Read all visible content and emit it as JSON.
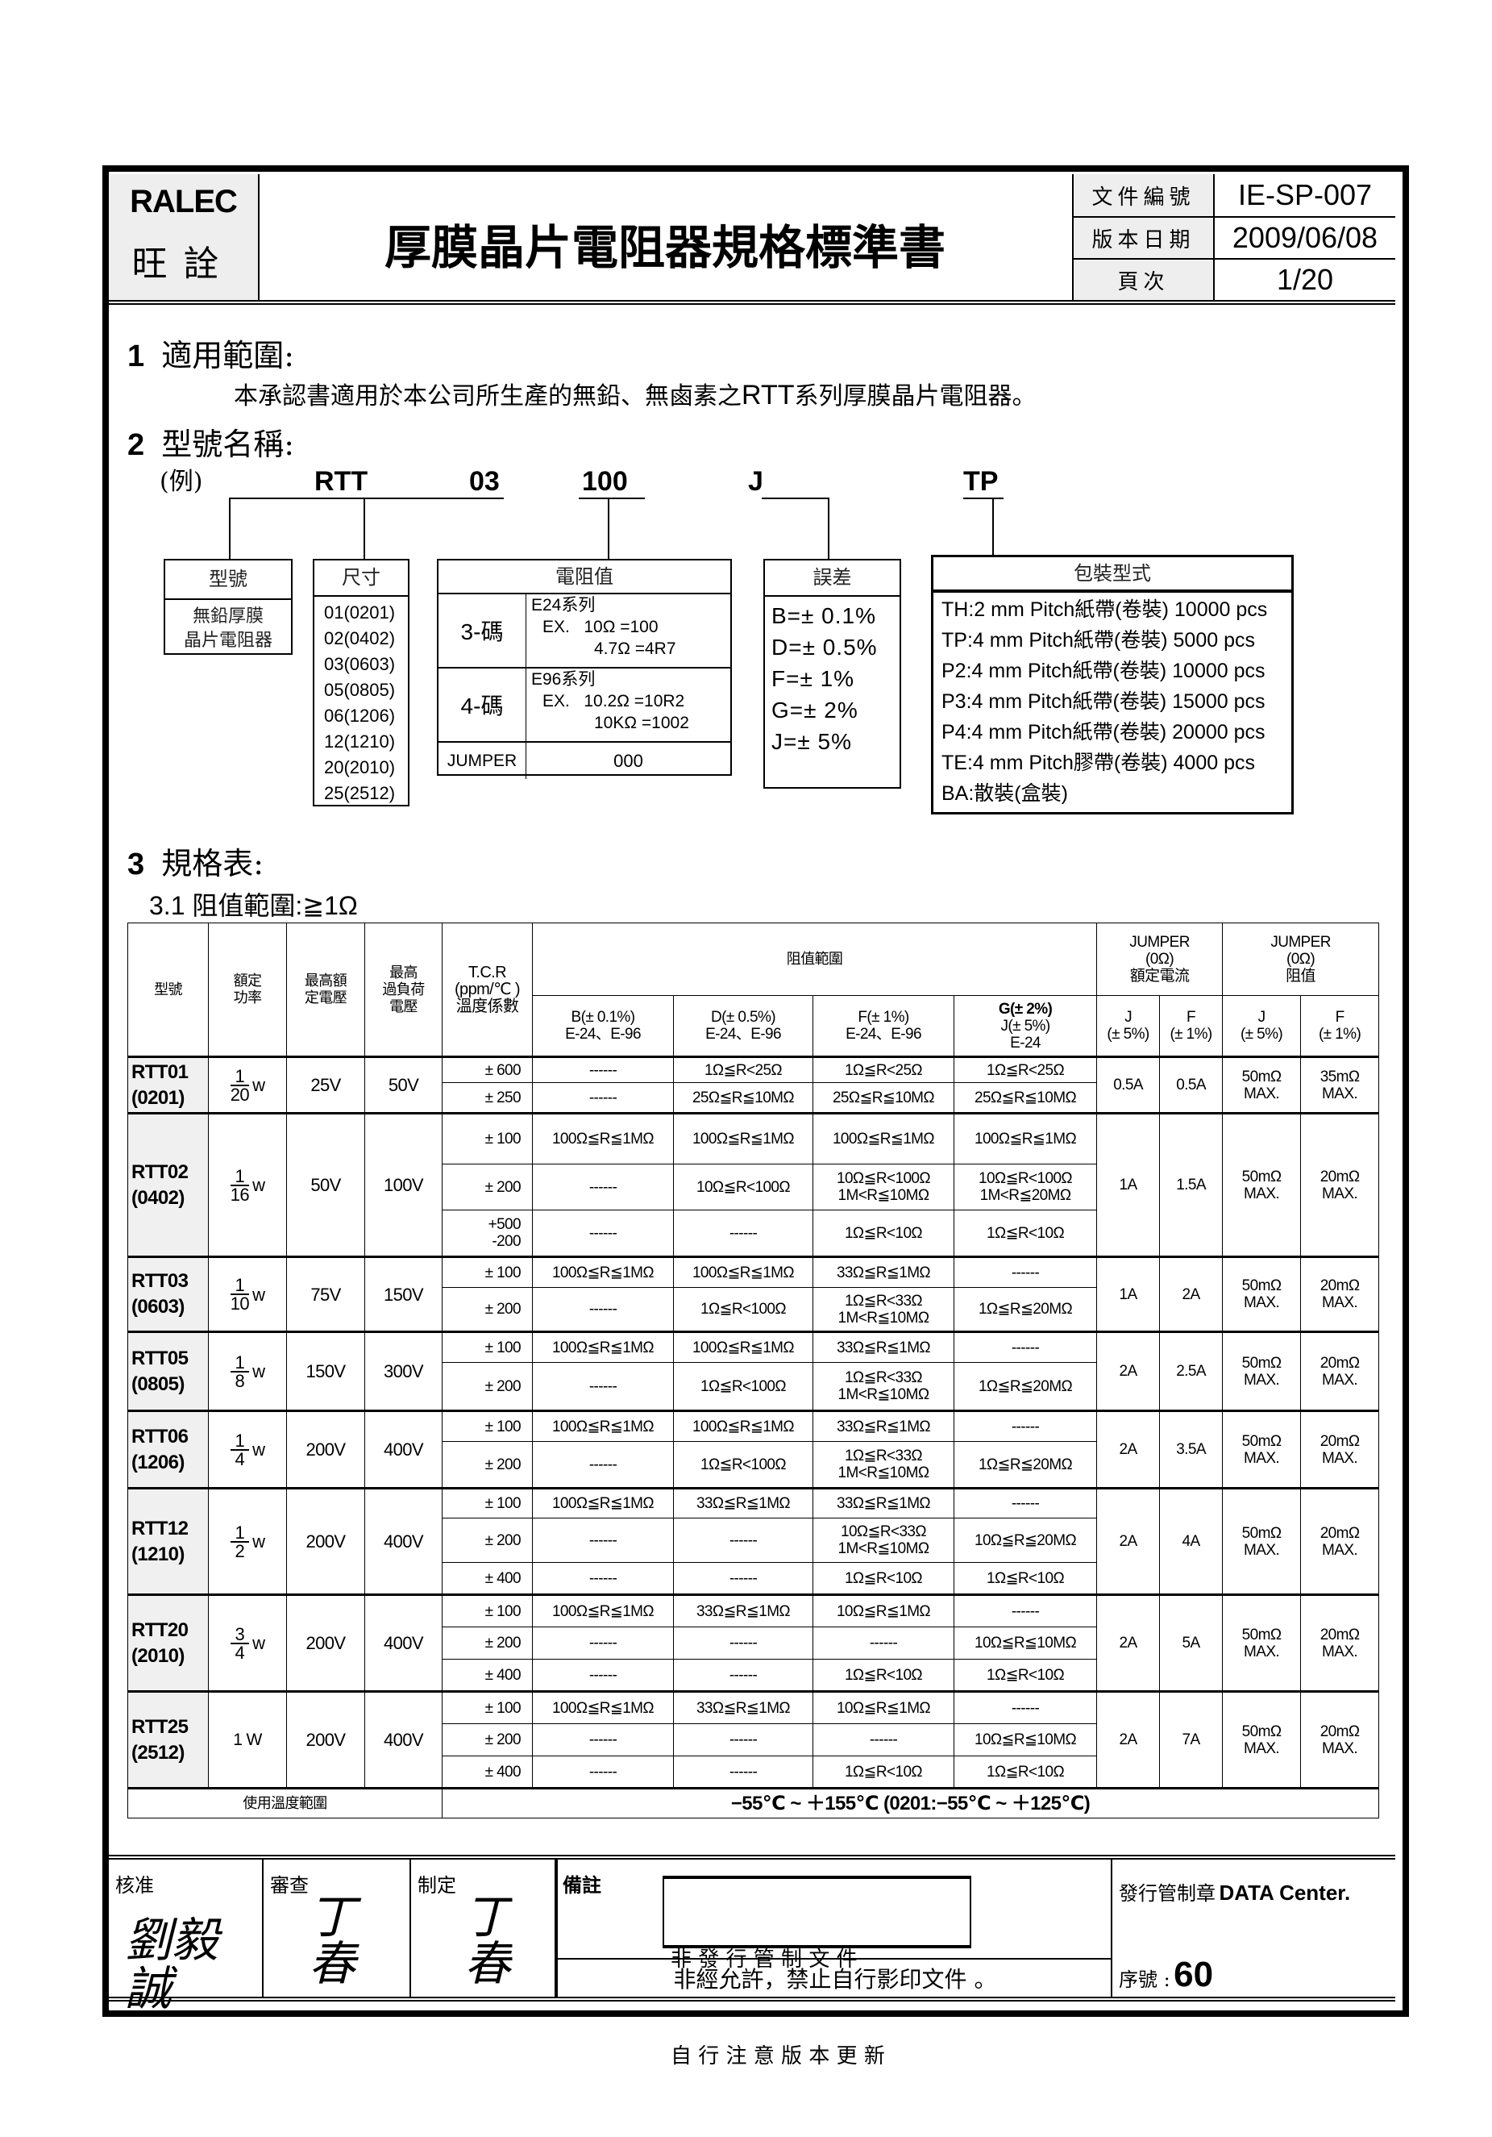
{
  "header": {
    "brand_en": "RALEC",
    "brand_zh": "旺詮",
    "title": "厚膜晶片電阻器規格標準書",
    "meta": [
      {
        "label": "文件編號",
        "value": "IE-SP-007"
      },
      {
        "label": "版本日期",
        "value": "2009/06/08"
      },
      {
        "label": "頁次",
        "value": "1/20"
      }
    ]
  },
  "section1": {
    "number": "1",
    "title": "適用範圍:",
    "text_a": "本承認書適用於本公司所生產的無鉛、無鹵素之",
    "text_rtt": "RTT",
    "text_b": "系列厚膜晶片電阻器。"
  },
  "section2": {
    "number": "2",
    "title": "型號名稱:",
    "example": "(例)",
    "codes": [
      "RTT",
      "03",
      "100",
      "J",
      "TP"
    ],
    "type_box": {
      "title": "型號",
      "lines": [
        "無鉛厚膜",
        "晶片電阻器"
      ]
    },
    "size_box": {
      "title": "尺寸",
      "items": [
        "01(0201)",
        "02(0402)",
        "03(0603)",
        "05(0805)",
        "06(1206)",
        "12(1210)",
        "20(2010)",
        "25(2512)"
      ]
    },
    "value_box": {
      "title": "電阻值",
      "three": {
        "label": "3-碼",
        "series": "E24系列",
        "ex1": "EX.   10Ω =100",
        "ex2": "4.7Ω =4R7"
      },
      "four": {
        "label": "4-碼",
        "series": "E96系列",
        "ex1": "EX.   10.2Ω =10R2",
        "ex2": "10KΩ =1002"
      },
      "jumper": {
        "label": "JUMPER",
        "value": "000"
      }
    },
    "tol_box": {
      "title": "誤差",
      "items": [
        "B=±  0.1%",
        "D=±  0.5%",
        "F=±  1%",
        "G=±  2%",
        "J=±  5%"
      ]
    },
    "pack_box": {
      "title": "包裝型式",
      "items": [
        "TH:2 mm Pitch紙帶(卷裝) 10000 pcs",
        "TP:4 mm Pitch紙帶(卷裝) 5000 pcs",
        "P2:4 mm Pitch紙帶(卷裝) 10000 pcs",
        "P3:4 mm Pitch紙帶(卷裝) 15000 pcs",
        "P4:4 mm Pitch紙帶(卷裝) 20000 pcs",
        "TE:4 mm Pitch膠帶(卷裝) 4000 pcs",
        "BA:散裝(盒裝)"
      ]
    }
  },
  "section3": {
    "number": "3",
    "title": "規格表:",
    "sub": "3.1 阻值範圍:≧1Ω"
  },
  "table": {
    "headers": {
      "model": "型號",
      "power": "額定\n功率",
      "voltage": "最高額\n定電壓",
      "overload": "最高\n過負荷\n電壓",
      "tcr": "T.C.R\n(ppm/℃ )\n溫度係數",
      "range": "阻值範圍",
      "b": "B(± 0.1%)\nE-24、E-96",
      "d": "D(± 0.5%)\nE-24、E-96",
      "f": "F(± 1%)\nE-24、E-96",
      "g_bold": "G(± 2%)",
      "g": "J(± 5%)\nE-24",
      "jc": "JUMPER\n(0Ω)\n額定電流",
      "jr": "JUMPER\n(0Ω)\n阻值",
      "jc_j": "J\n(± 5%)",
      "jc_f": "F\n(± 1%)",
      "jr_j": "J\n(± 5%)",
      "jr_f": "F\n(± 1%)"
    },
    "products": [
      {
        "model": "RTT01\n(0201)",
        "power": {
          "num": "1",
          "den": "20",
          "unit": "w"
        },
        "voltage": "25V",
        "overload": "50V",
        "rows": [
          [
            "± 600",
            "------",
            "1Ω≦R<25Ω",
            "1Ω≦R<25Ω",
            "1Ω≦R<25Ω"
          ],
          [
            "± 250",
            "------",
            "25Ω≦R≦10MΩ",
            "25Ω≦R≦10MΩ",
            "25Ω≦R≦10MΩ"
          ]
        ],
        "jc_j": "0.5A",
        "jc_f": "0.5A",
        "jr_j": "50mΩ\nMAX.",
        "jr_f": "35mΩ\nMAX."
      },
      {
        "model": "RTT02\n(0402)",
        "power": {
          "num": "1",
          "den": "16",
          "unit": "w"
        },
        "voltage": "50V",
        "overload": "100V",
        "rows": [
          [
            "± 100",
            "100Ω≦R≦1MΩ",
            "100Ω≦R≦1MΩ",
            "100Ω≦R≦1MΩ",
            "100Ω≦R≦1MΩ"
          ],
          [
            "± 200",
            "------",
            "10Ω≦R<100Ω",
            "10Ω≦R<100Ω\n1M<R≦10MΩ",
            "10Ω≦R<100Ω\n1M<R≦20MΩ"
          ],
          [
            "+500\n-200",
            "------",
            "------",
            "1Ω≦R<10Ω",
            "1Ω≦R<10Ω"
          ]
        ],
        "jc_j": "1A",
        "jc_f": "1.5A",
        "jr_j": "50mΩ\nMAX.",
        "jr_f": "20mΩ\nMAX."
      },
      {
        "model": "RTT03\n(0603)",
        "power": {
          "num": "1",
          "den": "10",
          "unit": "w"
        },
        "voltage": "75V",
        "overload": "150V",
        "rows": [
          [
            "± 100",
            "100Ω≦R≦1MΩ",
            "100Ω≦R≦1MΩ",
            "33Ω≦R≦1MΩ",
            "------"
          ],
          [
            "± 200",
            "------",
            "1Ω≦R<100Ω",
            "1Ω≦R<33Ω\n1M<R≦10MΩ",
            "1Ω≦R≦20MΩ"
          ]
        ],
        "jc_j": "1A",
        "jc_f": "2A",
        "jr_j": "50mΩ\nMAX.",
        "jr_f": "20mΩ\nMAX."
      },
      {
        "model": "RTT05\n(0805)",
        "power": {
          "num": "1",
          "den": "8",
          "unit": "w"
        },
        "voltage": "150V",
        "overload": "300V",
        "rows": [
          [
            "± 100",
            "100Ω≦R≦1MΩ",
            "100Ω≦R≦1MΩ",
            "33Ω≦R≦1MΩ",
            "------"
          ],
          [
            "± 200",
            "------",
            "1Ω≦R<100Ω",
            "1Ω≦R<33Ω\n1M<R≦10MΩ",
            "1Ω≦R≦20MΩ"
          ]
        ],
        "jc_j": "2A",
        "jc_f": "2.5A",
        "jr_j": "50mΩ\nMAX.",
        "jr_f": "20mΩ\nMAX."
      },
      {
        "model": "RTT06\n(1206)",
        "power": {
          "num": "1",
          "den": "4",
          "unit": "w"
        },
        "voltage": "200V",
        "overload": "400V",
        "rows": [
          [
            "± 100",
            "100Ω≦R≦1MΩ",
            "100Ω≦R≦1MΩ",
            "33Ω≦R≦1MΩ",
            "------"
          ],
          [
            "± 200",
            "------",
            "1Ω≦R<100Ω",
            "1Ω≦R<33Ω\n1M<R≦10MΩ",
            "1Ω≦R≦20MΩ"
          ]
        ],
        "jc_j": "2A",
        "jc_f": "3.5A",
        "jr_j": "50mΩ\nMAX.",
        "jr_f": "20mΩ\nMAX."
      },
      {
        "model": "RTT12\n(1210)",
        "power": {
          "num": "1",
          "den": "2",
          "unit": "w"
        },
        "voltage": "200V",
        "overload": "400V",
        "rows": [
          [
            "± 100",
            "100Ω≦R≦1MΩ",
            "33Ω≦R≦1MΩ",
            "33Ω≦R≦1MΩ",
            "------"
          ],
          [
            "± 200",
            "------",
            "------",
            "10Ω≦R<33Ω\n1M<R≦10MΩ",
            "10Ω≦R≦20MΩ"
          ],
          [
            "± 400",
            "------",
            "------",
            "1Ω≦R<10Ω",
            "1Ω≦R<10Ω"
          ]
        ],
        "jc_j": "2A",
        "jc_f": "4A",
        "jr_j": "50mΩ\nMAX.",
        "jr_f": "20mΩ\nMAX."
      },
      {
        "model": "RTT20\n(2010)",
        "power": {
          "num": "3",
          "den": "4",
          "unit": "w"
        },
        "voltage": "200V",
        "overload": "400V",
        "rows": [
          [
            "± 100",
            "100Ω≦R≦1MΩ",
            "33Ω≦R≦1MΩ",
            "10Ω≦R≦1MΩ",
            "------"
          ],
          [
            "± 200",
            "------",
            "------",
            "------",
            "10Ω≦R≦10MΩ"
          ],
          [
            "± 400",
            "------",
            "------",
            "1Ω≦R<10Ω",
            "1Ω≦R<10Ω"
          ]
        ],
        "jc_j": "2A",
        "jc_f": "5A",
        "jr_j": "50mΩ\nMAX.",
        "jr_f": "20mΩ\nMAX."
      },
      {
        "model": "RTT25\n(2512)",
        "power": {
          "text": "1 W"
        },
        "voltage": "200V",
        "overload": "400V",
        "rows": [
          [
            "± 100",
            "100Ω≦R≦1MΩ",
            "33Ω≦R≦1MΩ",
            "10Ω≦R≦1MΩ",
            "------"
          ],
          [
            "± 200",
            "------",
            "------",
            "------",
            "10Ω≦R≦10MΩ"
          ],
          [
            "± 400",
            "------",
            "------",
            "1Ω≦R<10Ω",
            "1Ω≦R<10Ω"
          ]
        ],
        "jc_j": "2A",
        "jc_f": "7A",
        "jr_j": "50mΩ\nMAX.",
        "jr_f": "20mΩ\nMAX."
      }
    ],
    "temp_label": "使用溫度範圍",
    "temp_value": "−55℃ ~ ＋155℃  (0201:−55℃ ~ ＋125℃)"
  },
  "footer": {
    "approve_label": "核准",
    "approve_sig": "劉毅誠",
    "review_label": "審查",
    "review_sig": "丁春",
    "make_label": "制定",
    "make_sig": "丁春",
    "remark_label": "備註",
    "stamp_line1": "非 發 行 管 制 文 件",
    "stamp_line2": "自 行 注 意 版 本 更 新",
    "notice": "非經允許，禁止自行影印文件 。",
    "issue_label": "發行管制章",
    "issue_value": "DATA Center.",
    "serial_label": "序號 :",
    "serial_value": "60"
  }
}
